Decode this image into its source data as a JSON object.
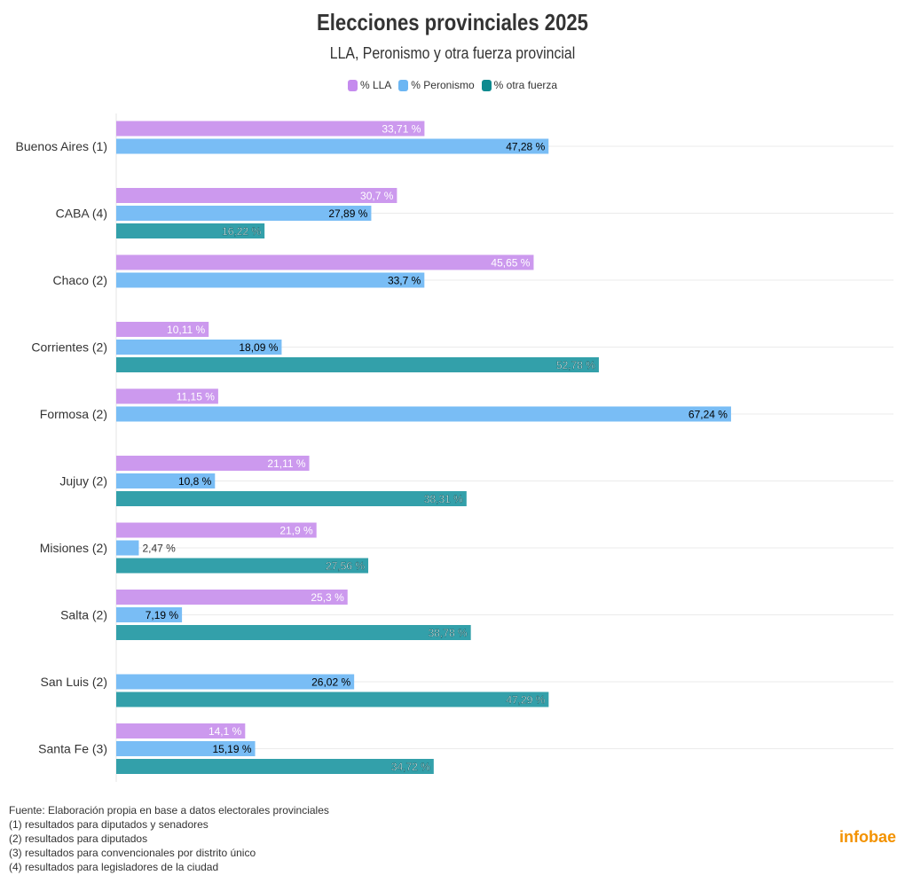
{
  "chart_data": {
    "type": "bar",
    "orientation": "horizontal",
    "title": "Elecciones provinciales 2025",
    "subtitle": "LLA, Peronismo y otra fuerza provincial",
    "categories": [
      "Buenos Aires (1)",
      "CABA (4)",
      "Chaco (2)",
      "Corrientes (2)",
      "Formosa (2)",
      "Jujuy (2)",
      "Misiones (2)",
      "Salta (2)",
      "San Luis (2)",
      "Santa Fe (3)"
    ],
    "series": [
      {
        "name": "% LLA",
        "color": "#cc99ee",
        "values": [
          33.71,
          30.7,
          45.65,
          10.11,
          11.15,
          21.11,
          21.9,
          25.3,
          null,
          14.1
        ],
        "labels": [
          "33,71 %",
          "30,7 %",
          "45,65 %",
          "10,11 %",
          "11,15 %",
          "21,11 %",
          "21,9 %",
          "25,3 %",
          null,
          "14,1 %"
        ]
      },
      {
        "name": "% Peronismo",
        "color": "#79bdf5",
        "values": [
          47.28,
          27.89,
          33.7,
          18.09,
          67.24,
          10.8,
          2.47,
          7.19,
          26.02,
          15.19
        ],
        "labels": [
          "47,28 %",
          "27,89 %",
          "33,7 %",
          "18,09 %",
          "67,24 %",
          "10,8 %",
          "2,47 %",
          "7,19 %",
          "26,02 %",
          "15,19 %"
        ]
      },
      {
        "name": "% otra fuerza",
        "color": "#33a0aa",
        "legend_color": "#0e8a8f",
        "values": [
          null,
          16.22,
          null,
          52.78,
          null,
          38.31,
          27.56,
          38.78,
          47.29,
          34.72
        ],
        "labels": [
          null,
          "16,22 %",
          null,
          "52,78 %",
          null,
          "38,31 %",
          "27,56 %",
          "38,78 %",
          "47,29 %",
          "34,72 %"
        ]
      }
    ],
    "xlim": [
      0,
      85
    ],
    "grid": true,
    "legend": "top-center"
  },
  "notes": [
    "Fuente: Elaboración propia en base a datos electorales provinciales",
    "(1) resultados para diputados y senadores",
    "(2) resultados para diputados",
    "(3) resultados para convencionales por distrito único",
    "(4) resultados para legisladores de la ciudad"
  ],
  "brand": "infobae"
}
